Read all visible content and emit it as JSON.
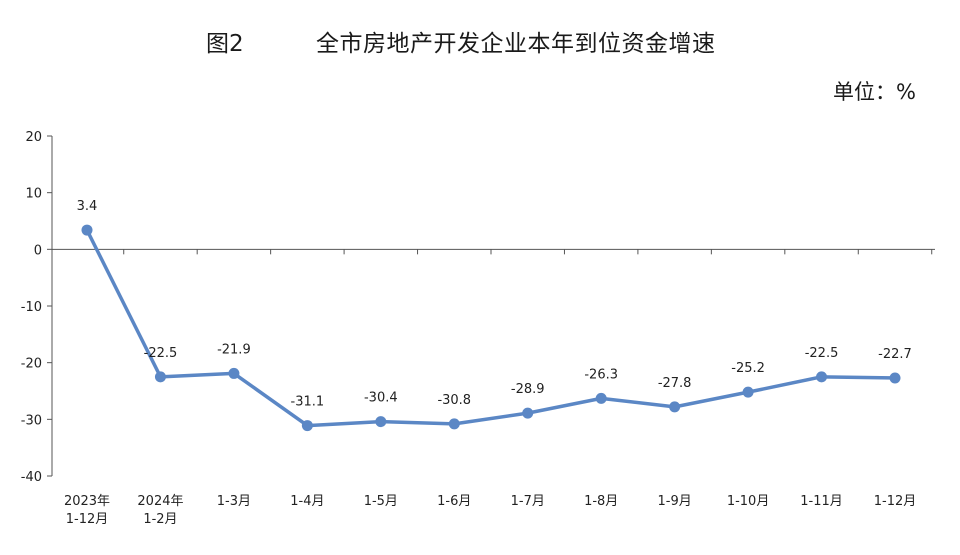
{
  "header": {
    "figure_number": "图2",
    "title": "全市房地产开发企业本年到位资金增速",
    "unit": "单位：%"
  },
  "chart_data": {
    "type": "line",
    "title": "全市房地产开发企业本年到位资金增速",
    "categories": [
      [
        "2023年",
        "1-12月"
      ],
      [
        "2024年",
        "1-2月"
      ],
      [
        "1-3月"
      ],
      [
        "1-4月"
      ],
      [
        "1-5月"
      ],
      [
        "1-6月"
      ],
      [
        "1-7月"
      ],
      [
        "1-8月"
      ],
      [
        "1-9月"
      ],
      [
        "1-10月"
      ],
      [
        "1-11月"
      ],
      [
        "1-12月"
      ]
    ],
    "values": [
      3.4,
      -22.5,
      -21.9,
      -31.1,
      -30.4,
      -30.8,
      -28.9,
      -26.3,
      -27.8,
      -25.2,
      -22.5,
      -22.7
    ],
    "value_labels": [
      "3.4",
      "-22.5",
      "-21.9",
      "-31.1",
      "-30.4",
      "-30.8",
      "-28.9",
      "-26.3",
      "-27.8",
      "-25.2",
      "-22.5",
      "-22.7"
    ],
    "ylim": [
      -40,
      20
    ],
    "yticks": [
      20,
      10,
      0,
      -10,
      -20,
      -30,
      -40
    ],
    "xlabel": "",
    "ylabel": "",
    "grid": false,
    "color": "#5b87c5"
  }
}
